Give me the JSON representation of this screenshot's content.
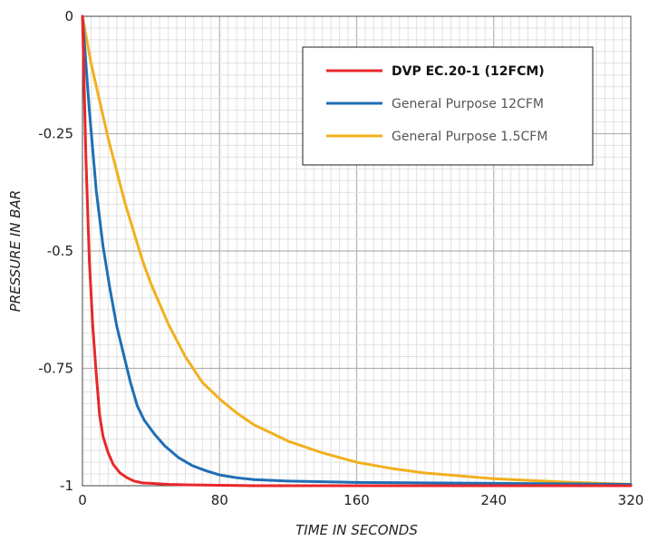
{
  "chart_data": {
    "type": "line",
    "xlabel": "TIME IN SECONDS",
    "ylabel": "PRESSURE IN BAR",
    "xlim": [
      0,
      320
    ],
    "ylim": [
      -1,
      0
    ],
    "x_ticks": [
      0,
      80,
      160,
      240,
      320
    ],
    "x_tick_labels": [
      "0",
      "80",
      "160",
      "240",
      "320"
    ],
    "y_ticks": [
      0,
      -0.25,
      -0.5,
      -0.75,
      -1
    ],
    "y_tick_labels": [
      "0",
      "-0.25",
      "-0.5",
      "-0.75",
      "-1"
    ],
    "grid": true,
    "legend_position": "top-right",
    "series": [
      {
        "name": "DVP EC.20-1 (12FCM)",
        "color": "#e8272a",
        "bold": true,
        "x": [
          0,
          2,
          4,
          6,
          8,
          10,
          12,
          15,
          18,
          22,
          26,
          30,
          35,
          40,
          50,
          60,
          80,
          100,
          140,
          200,
          260,
          320
        ],
        "y": [
          0,
          -0.3,
          -0.52,
          -0.66,
          -0.76,
          -0.85,
          -0.895,
          -0.93,
          -0.955,
          -0.973,
          -0.983,
          -0.99,
          -0.994,
          -0.995,
          -0.997,
          -0.998,
          -0.999,
          -1,
          -1,
          -1,
          -1,
          -1
        ]
      },
      {
        "name": "General Purpose 12CFM",
        "color": "#1f6fb4",
        "bold": false,
        "x": [
          0,
          4,
          8,
          12,
          16,
          20,
          24,
          28,
          32,
          36,
          42,
          48,
          56,
          64,
          72,
          80,
          90,
          100,
          120,
          160,
          240,
          320
        ],
        "y": [
          0,
          -0.2,
          -0.37,
          -0.49,
          -0.58,
          -0.66,
          -0.72,
          -0.78,
          -0.83,
          -0.86,
          -0.89,
          -0.915,
          -0.94,
          -0.957,
          -0.968,
          -0.977,
          -0.983,
          -0.987,
          -0.99,
          -0.993,
          -0.995,
          -0.997
        ]
      },
      {
        "name": "General Purpose 1.5CFM",
        "color": "#f2b01e",
        "bold": false,
        "x": [
          0,
          5,
          10,
          15,
          20,
          25,
          30,
          35,
          40,
          50,
          60,
          70,
          80,
          90,
          100,
          120,
          140,
          160,
          180,
          200,
          240,
          280,
          320
        ],
        "y": [
          0,
          -0.1,
          -0.18,
          -0.26,
          -0.33,
          -0.4,
          -0.46,
          -0.52,
          -0.57,
          -0.655,
          -0.725,
          -0.78,
          -0.815,
          -0.845,
          -0.87,
          -0.905,
          -0.93,
          -0.95,
          -0.963,
          -0.973,
          -0.985,
          -0.992,
          -0.997
        ]
      }
    ]
  }
}
